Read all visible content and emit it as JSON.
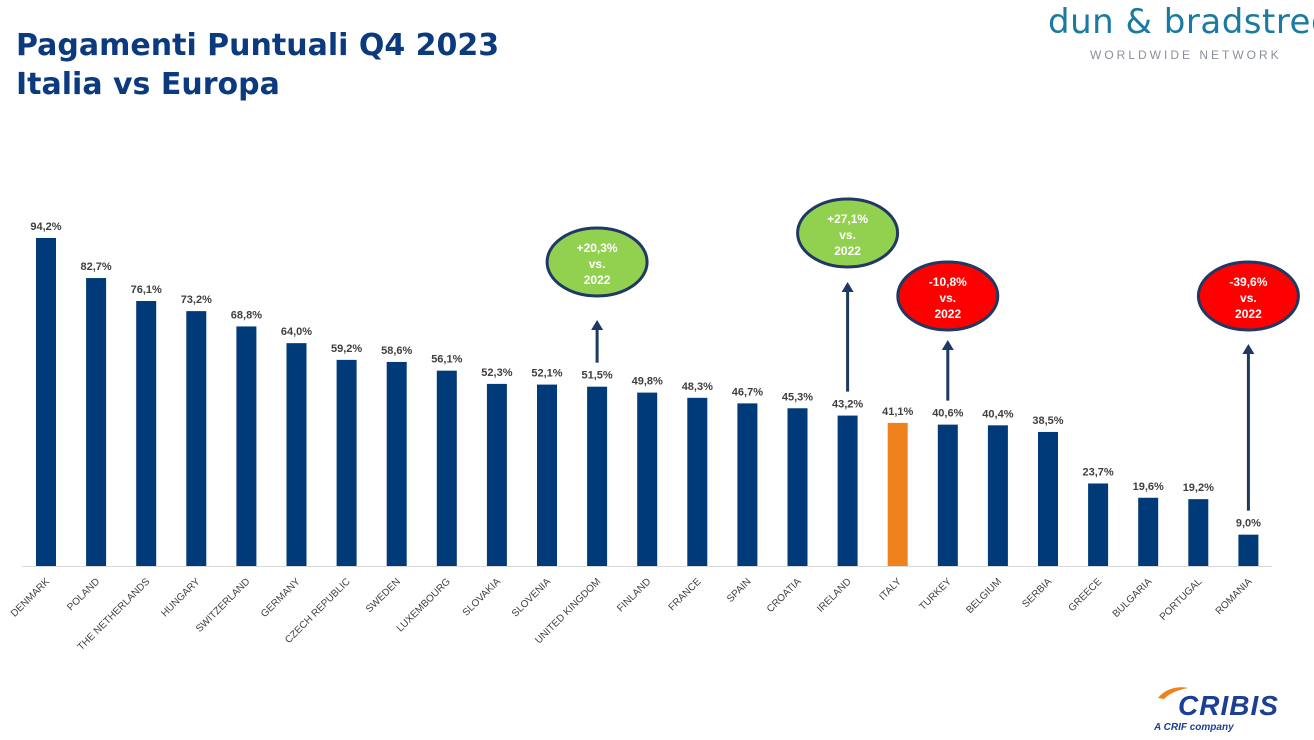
{
  "header": {
    "title_line1": "Pagamenti Puntuali Q4 2023",
    "title_line2": "Italia vs Europa"
  },
  "brand": {
    "name": "dun & bradstreet",
    "subtitle": "WORLDWIDE NETWORK"
  },
  "footer": {
    "logo": "CRIBIS",
    "tagline": "A CRIF company"
  },
  "colors": {
    "bar": "#003a78",
    "highlight": "#f0821e",
    "positive": "#92d050",
    "negative": "#ff0000",
    "outline": "#1f3864",
    "arrow": "#1f3864"
  },
  "chart_data": {
    "type": "bar",
    "title": "Pagamenti Puntuali Q4 2023 Italia vs Europa",
    "xlabel": "",
    "ylabel": "",
    "ylim": [
      0,
      100
    ],
    "grid": false,
    "categories": [
      "DENMARK",
      "POLAND",
      "THE NETHERLANDS",
      "HUNGARY",
      "SWITZERLAND",
      "GERMANY",
      "CZECH REPUBLIC",
      "SWEDEN",
      "LUXEMBOURG",
      "SLOVAKIA",
      "SLOVENIA",
      "UNITED KINGDOM",
      "FINLAND",
      "FRANCE",
      "SPAIN",
      "CROATIA",
      "IRELAND",
      "ITALY",
      "TURKEY",
      "BELGIUM",
      "SERBIA",
      "GREECE",
      "BULGARIA",
      "PORTUGAL",
      "ROMANIA"
    ],
    "values": [
      94.2,
      82.7,
      76.1,
      73.2,
      68.8,
      64.0,
      59.2,
      58.6,
      56.1,
      52.3,
      52.1,
      51.5,
      49.8,
      48.3,
      46.7,
      45.3,
      43.2,
      41.1,
      40.6,
      40.4,
      38.5,
      23.7,
      19.6,
      19.2,
      9.0
    ],
    "value_labels": [
      "94,2%",
      "82,7%",
      "76,1%",
      "73,2%",
      "68,8%",
      "64,0%",
      "59,2%",
      "58,6%",
      "56,1%",
      "52,3%",
      "52,1%",
      "51,5%",
      "49,8%",
      "48,3%",
      "46,7%",
      "45,3%",
      "43,2%",
      "41,1%",
      "40,6%",
      "40,4%",
      "38,5%",
      "23,7%",
      "19,6%",
      "19,2%",
      "9,0%"
    ],
    "highlight_category": "ITALY",
    "annotations": [
      {
        "category": "UNITED KINGDOM",
        "line1": "+20,3%",
        "line2": "vs.",
        "line3": "2022",
        "sentiment": "positive"
      },
      {
        "category": "IRELAND",
        "line1": "+27,1%",
        "line2": "vs.",
        "line3": "2022",
        "sentiment": "positive"
      },
      {
        "category": "TURKEY",
        "line1": "-10,8%",
        "line2": "vs.",
        "line3": "2022",
        "sentiment": "negative"
      },
      {
        "category": "ROMANIA",
        "line1": "-39,6%",
        "line2": "vs.",
        "line3": "2022",
        "sentiment": "negative"
      }
    ]
  }
}
